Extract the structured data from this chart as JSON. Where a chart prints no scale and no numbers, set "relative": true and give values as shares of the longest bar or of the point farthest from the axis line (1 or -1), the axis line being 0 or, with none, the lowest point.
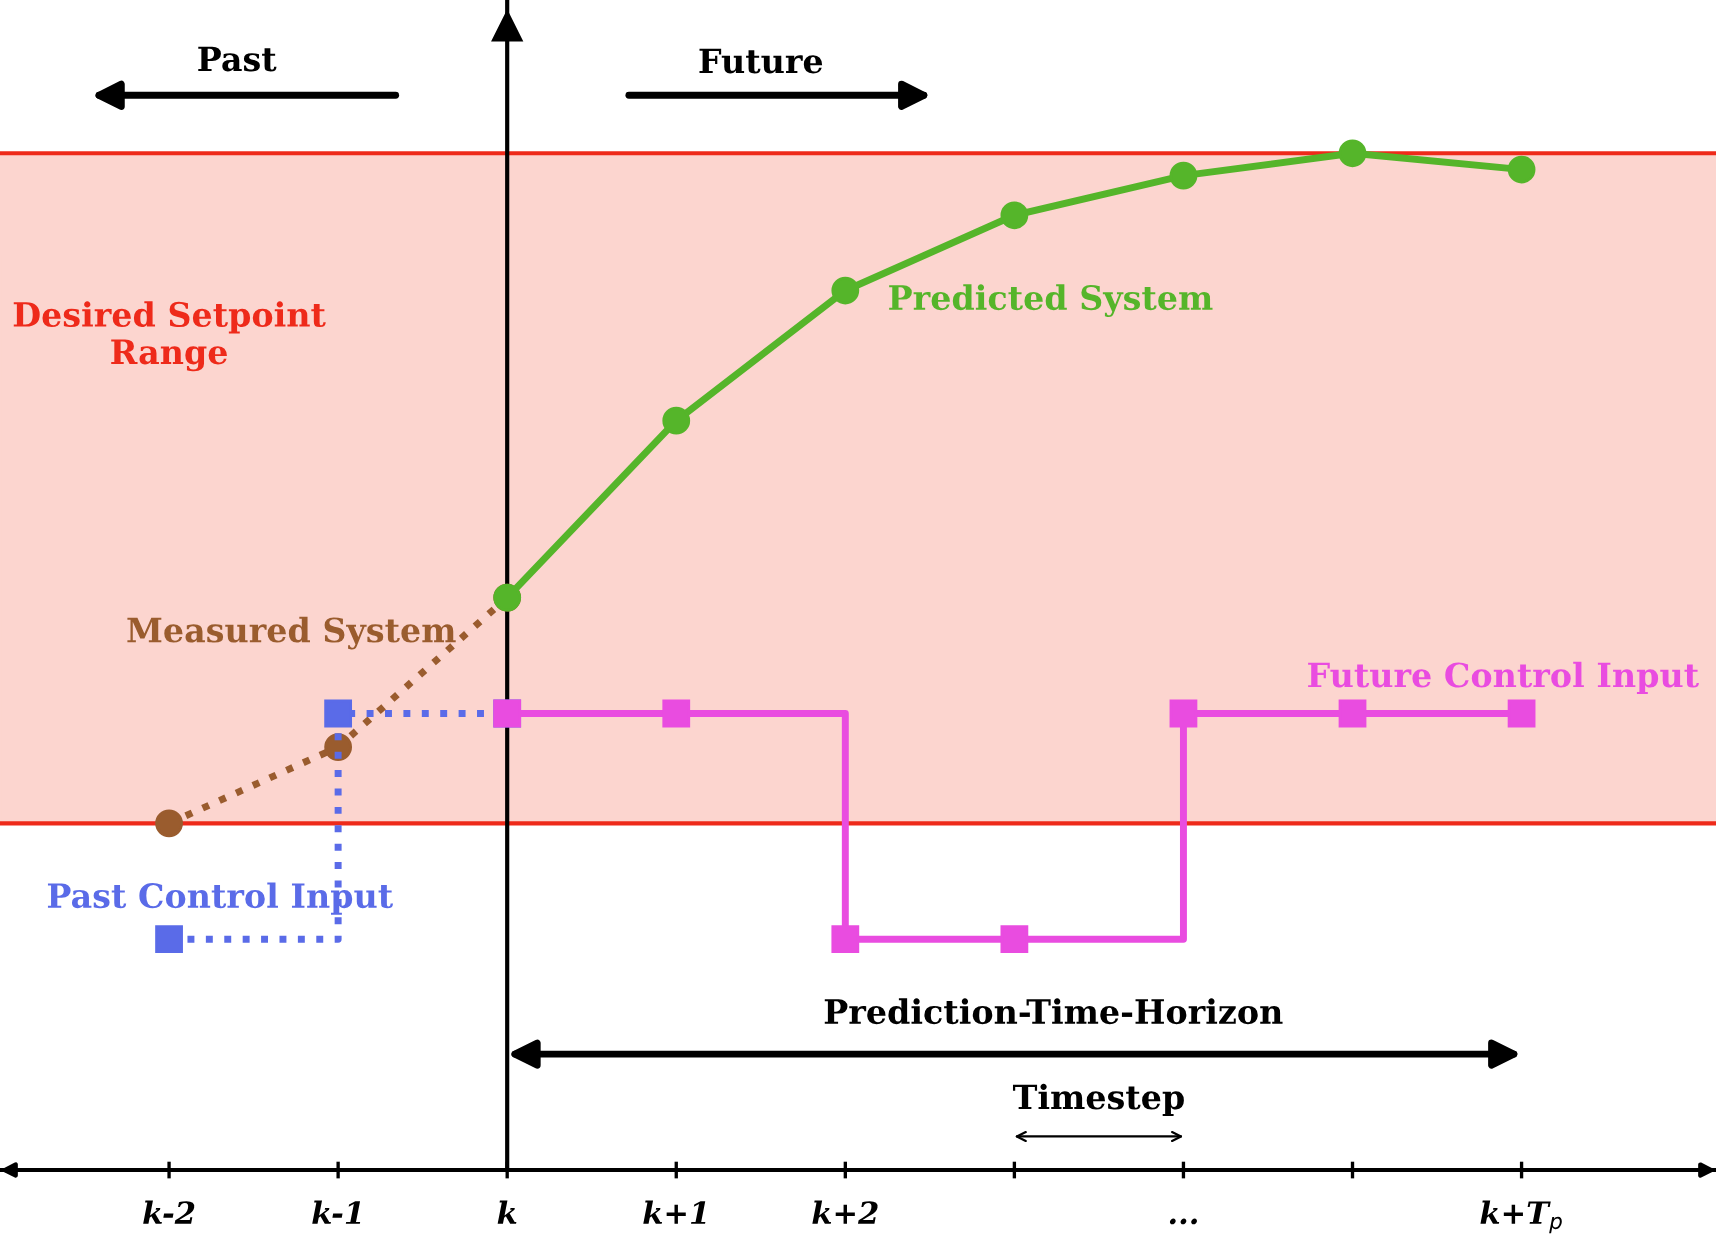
{
  "chart_data": {
    "type": "line",
    "relative": true,
    "categories": [
      "k-2",
      "k-1",
      "k",
      "k+1",
      "k+2",
      null,
      "...",
      null,
      "k+T$_{p}$"
    ],
    "series": [
      {
        "name": "Measured System",
        "color": "#9a5c2e",
        "line_style": "dotted",
        "marker": "circle",
        "values": [
          0.341,
          0.416,
          0.563,
          null,
          null,
          null,
          null,
          null,
          null
        ]
      },
      {
        "name": "Predicted System",
        "color": "#55b52a",
        "line_style": "solid",
        "marker": "circle",
        "values": [
          null,
          null,
          0.563,
          0.737,
          0.865,
          0.939,
          0.978,
          1.0,
          0.984
        ]
      },
      {
        "name": "Past Control Input",
        "type": "step",
        "color": "#5a6be8",
        "line_style": "dotted",
        "marker": "square",
        "values": [
          0.227,
          0.449,
          0.449,
          null,
          null,
          null,
          null,
          null,
          null
        ]
      },
      {
        "name": "Future Control Input",
        "type": "step",
        "color": "#e94ce0",
        "line_style": "solid",
        "marker": "square",
        "values": [
          null,
          null,
          0.449,
          0.449,
          0.227,
          0.227,
          0.449,
          0.449,
          0.449
        ]
      }
    ],
    "bands": [
      {
        "axis": "y",
        "from": 0.341,
        "to": 1.0,
        "label": "Desired Setpoint\nRange",
        "color": "#fcd5cf"
      }
    ],
    "ref_lines": [
      {
        "axis": "y",
        "value": 0.341,
        "color": "#ee2a1a"
      },
      {
        "axis": "y",
        "value": 1.0,
        "color": "#ee2a1a"
      }
    ],
    "annotations": [
      "Past",
      "Future",
      "Prediction-Time-Horizon",
      "Timestep"
    ]
  }
}
